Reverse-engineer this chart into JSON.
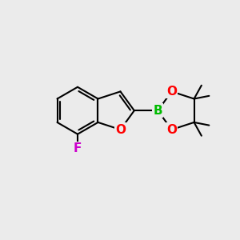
{
  "background_color": "#ebebeb",
  "bond_color": "#000000",
  "bond_width": 1.5,
  "atoms": {
    "B": {
      "color": "#00bb00",
      "fontsize": 11,
      "fontweight": "bold"
    },
    "O": {
      "color": "#ff0000",
      "fontsize": 11,
      "fontweight": "bold"
    },
    "F": {
      "color": "#cc00cc",
      "fontsize": 11,
      "fontweight": "bold"
    }
  },
  "figsize": [
    3.0,
    3.0
  ],
  "dpi": 100,
  "xlim": [
    0,
    10
  ],
  "ylim": [
    0,
    10
  ]
}
